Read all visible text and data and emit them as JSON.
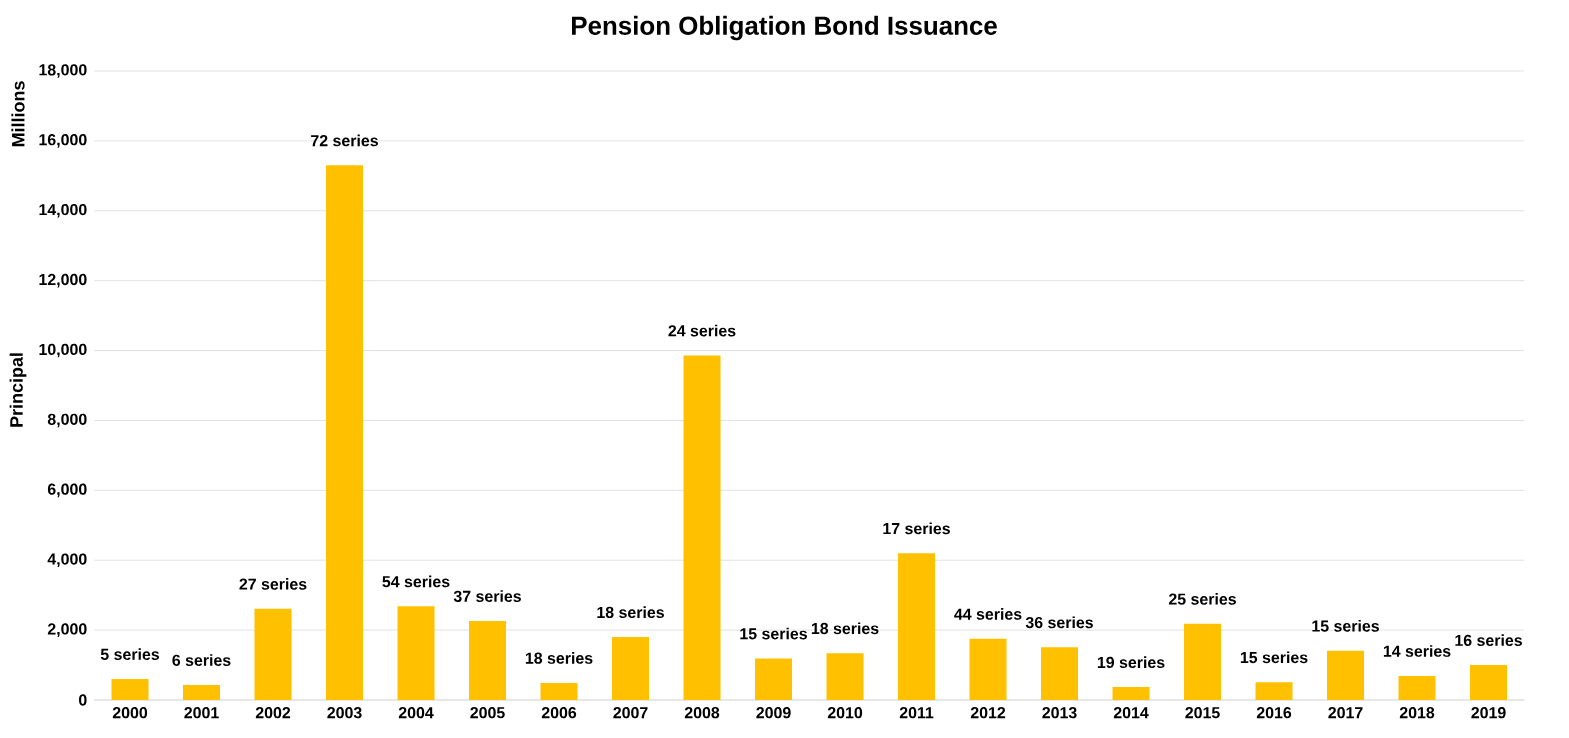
{
  "chart_data": {
    "type": "bar",
    "title": "Pension Obligation Bond Issuance",
    "ylabel": "Principal",
    "annotations": [
      "Millions",
      {
        "text": "5 series",
        "x": "2000",
        "y": 600
      },
      {
        "text": "6 series",
        "x": "2001",
        "y": 430
      },
      {
        "text": "27 series",
        "x": "2002",
        "y": 2610
      },
      {
        "text": "72 series",
        "x": "2003",
        "y": 15300
      },
      {
        "text": "54 series",
        "x": "2004",
        "y": 2680
      },
      {
        "text": "37 series",
        "x": "2005",
        "y": 2260
      },
      {
        "text": "18 series",
        "x": "2006",
        "y": 490
      },
      {
        "text": "18 series",
        "x": "2007",
        "y": 1800
      },
      {
        "text": "24 series",
        "x": "2008",
        "y": 9860
      },
      {
        "text": "15 series",
        "x": "2009",
        "y": 1190
      },
      {
        "text": "18 series",
        "x": "2010",
        "y": 1340
      },
      {
        "text": "17 series",
        "x": "2011",
        "y": 4200
      },
      {
        "text": "44 series",
        "x": "2012",
        "y": 1750
      },
      {
        "text": "36 series",
        "x": "2013",
        "y": 1510
      },
      {
        "text": "19 series",
        "x": "2014",
        "y": 370
      },
      {
        "text": "25 series",
        "x": "2015",
        "y": 2180
      },
      {
        "text": "15 series",
        "x": "2016",
        "y": 510
      },
      {
        "text": "15 series",
        "x": "2017",
        "y": 1410
      },
      {
        "text": "14 series",
        "x": "2018",
        "y": 690
      },
      {
        "text": "16 series",
        "x": "2019",
        "y": 1000
      }
    ],
    "categories": [
      "2000",
      "2001",
      "2002",
      "2003",
      "2004",
      "2005",
      "2006",
      "2007",
      "2008",
      "2009",
      "2010",
      "2011",
      "2012",
      "2013",
      "2014",
      "2015",
      "2016",
      "2017",
      "2018",
      "2019"
    ],
    "values": [
      600,
      430,
      2610,
      15300,
      2680,
      2260,
      490,
      1800,
      9860,
      1190,
      1340,
      4200,
      1750,
      1510,
      370,
      2180,
      510,
      1410,
      690,
      1000
    ],
    "color": "#ffc000",
    "ylim": [
      0,
      18000
    ],
    "yticks": [
      {
        "value": 0,
        "label": "0"
      },
      {
        "value": 2000,
        "label": "2,000"
      },
      {
        "value": 4000,
        "label": "4,000"
      },
      {
        "value": 6000,
        "label": "6,000"
      },
      {
        "value": 8000,
        "label": "8,000"
      },
      {
        "value": 10000,
        "label": "10,000"
      },
      {
        "value": 12000,
        "label": "12,000"
      },
      {
        "value": 14000,
        "label": "14,000"
      },
      {
        "value": 16000,
        "label": "16,000"
      },
      {
        "value": 18000,
        "label": "18,000"
      }
    ],
    "grid": "y"
  }
}
